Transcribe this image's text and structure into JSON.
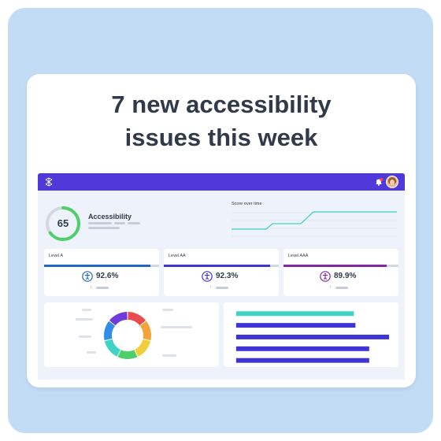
{
  "headline": [
    "7 new accessibility",
    "issues this week"
  ],
  "colors": {
    "frame_bg": "#c3dcf6",
    "topbar": "#4f3ad9",
    "gauge_green": "#4fcf6a",
    "trend_line": "#3fd3c6",
    "level_a": "#2266c8",
    "level_aa": "#3f35d6",
    "level_aaa": "#8327a3",
    "bars": [
      "#3fd3c6",
      "#3f35d6",
      "#3f35d6",
      "#3f35d6",
      "#3f35d6"
    ]
  },
  "dashboard": {
    "accessibility": {
      "score": "65",
      "score_value": 65,
      "label": "Accessibility"
    },
    "score_over_time": {
      "title": "Score over time"
    },
    "levels": [
      {
        "name": "Level A",
        "value": "92.6%",
        "fill": 0.926,
        "trend": "down",
        "arrow": "↓",
        "color": "#2266c8",
        "arrow_color": "#e04848"
      },
      {
        "name": "Level AA",
        "value": "92.3%",
        "fill": 0.923,
        "trend": "up",
        "arrow": "↑",
        "color": "#3f35d6",
        "arrow_color": "#3cbf78"
      },
      {
        "name": "Level AAA",
        "value": "89.9%",
        "fill": 0.899,
        "trend": "up",
        "arrow": "↑",
        "color": "#8327a3",
        "arrow_color": "#3cbf78"
      }
    ],
    "donut_segment_colors": [
      "#e94c4c",
      "#f2a33a",
      "#f2cf3a",
      "#4fcf6a",
      "#3fd3c6",
      "#2f8fe8",
      "#6f3cd9"
    ],
    "bar_values": [
      0.77,
      0.78,
      1.0,
      0.87,
      0.87
    ],
    "icons": {
      "logo": "app-logo-icon",
      "notification": "bell-icon",
      "level": "accessibility-person-icon"
    }
  }
}
